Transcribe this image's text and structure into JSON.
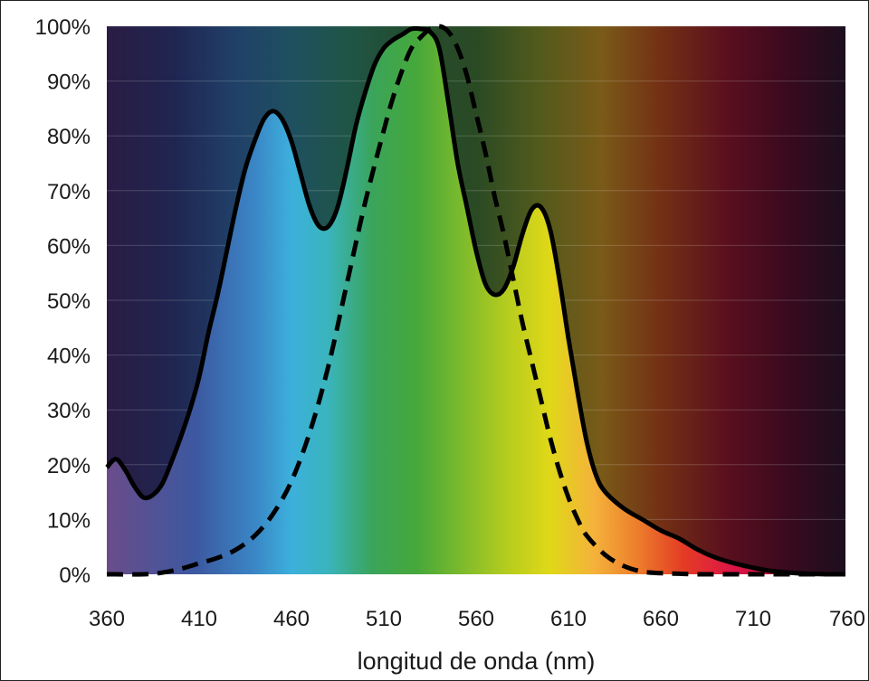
{
  "chart_data": {
    "type": "area",
    "title": "",
    "xlabel": "longitud de onda (nm)",
    "ylabel": "",
    "xlim": [
      360,
      760
    ],
    "ylim": [
      0,
      100
    ],
    "x_ticks": [
      360,
      410,
      460,
      510,
      560,
      610,
      660,
      710,
      760
    ],
    "y_ticks": [
      0,
      10,
      20,
      30,
      40,
      50,
      60,
      70,
      80,
      90,
      100
    ],
    "y_tick_labels": [
      "0%",
      "10%",
      "20%",
      "30%",
      "40%",
      "50%",
      "60%",
      "70%",
      "80%",
      "90%",
      "100%"
    ],
    "grid": true,
    "legend": "none",
    "background": "visible spectrum gradient",
    "series": [
      {
        "style": "solid",
        "color": "#000000",
        "filled": true,
        "x": [
          360,
          365,
          370,
          375,
          380,
          385,
          390,
          395,
          400,
          405,
          410,
          415,
          420,
          425,
          430,
          435,
          440,
          445,
          450,
          455,
          460,
          465,
          470,
          475,
          480,
          485,
          490,
          495,
          500,
          505,
          510,
          515,
          520,
          525,
          530,
          535,
          540,
          545,
          550,
          555,
          560,
          565,
          570,
          575,
          580,
          585,
          590,
          595,
          600,
          605,
          610,
          615,
          620,
          625,
          630,
          640,
          650,
          660,
          670,
          680,
          690,
          700,
          710,
          720,
          730,
          740,
          750,
          760
        ],
        "values": [
          19.5,
          21,
          19,
          16,
          14,
          14.5,
          16.5,
          20.5,
          25,
          30,
          36,
          44,
          51,
          59,
          67,
          74,
          79,
          83,
          84.5,
          83,
          79,
          73,
          67,
          63.5,
          63.5,
          67,
          74,
          82,
          88,
          93,
          96,
          97.5,
          98.5,
          99.5,
          99.5,
          99,
          96,
          86,
          75,
          67,
          59,
          53,
          51,
          52,
          56,
          62,
          66.5,
          67,
          63,
          54,
          43,
          33,
          24,
          18,
          15,
          12,
          10,
          8,
          6.5,
          4.5,
          3,
          2,
          1.2,
          0.6,
          0.3,
          0.1,
          0,
          0
        ]
      },
      {
        "style": "dashed",
        "color": "#000000",
        "filled": false,
        "x": [
          360,
          380,
          390,
          400,
          410,
          420,
          430,
          440,
          450,
          460,
          470,
          480,
          490,
          500,
          510,
          515,
          520,
          525,
          530,
          535,
          540,
          545,
          550,
          555,
          560,
          565,
          570,
          575,
          580,
          585,
          590,
          595,
          600,
          605,
          610,
          615,
          620,
          630,
          640,
          650,
          660,
          670,
          680,
          700,
          720,
          740,
          760
        ],
        "values": [
          0,
          0,
          0.3,
          1,
          2,
          3,
          4.5,
          7,
          11,
          17,
          26,
          38,
          53,
          68,
          81,
          87,
          92,
          96,
          98,
          99.5,
          100,
          99,
          96,
          91,
          84,
          77,
          69,
          62,
          54,
          46,
          39,
          32,
          25,
          19,
          14,
          10,
          7,
          3.5,
          1.5,
          0.5,
          0.2,
          0.1,
          0,
          0,
          0,
          0,
          0
        ]
      }
    ]
  }
}
